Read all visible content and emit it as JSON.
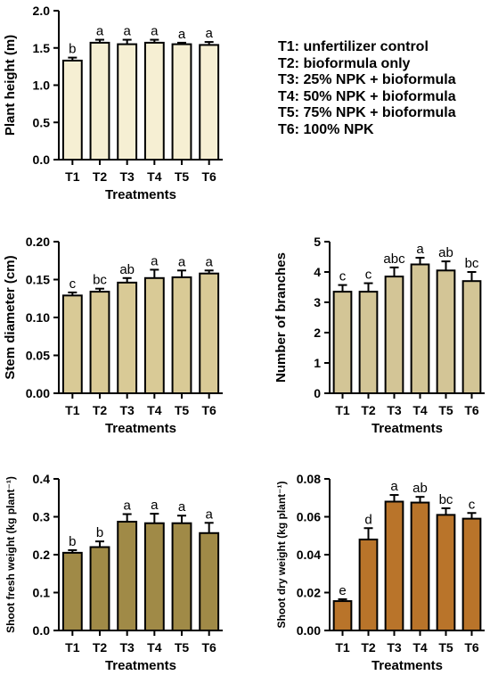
{
  "legend": {
    "items": [
      "T1: unfertilizer control",
      "T2: bioformula only",
      "T3: 25% NPK + bioformula",
      "T4: 50% NPK + bioformula",
      "T5: 75% NPK + bioformula",
      "T6: 100% NPK"
    ]
  },
  "chart_data": [
    {
      "type": "bar",
      "id": "plant-height",
      "categories": [
        "T1",
        "T2",
        "T3",
        "T4",
        "T5",
        "T6"
      ],
      "values": [
        1.33,
        1.57,
        1.55,
        1.57,
        1.55,
        1.54
      ],
      "errors": [
        0.04,
        0.04,
        0.06,
        0.04,
        0.02,
        0.04
      ],
      "letters": [
        "b",
        "a",
        "a",
        "a",
        "a",
        "a"
      ],
      "ylabel": "Plant height (m)",
      "xlabel": "Treatments",
      "ylim": [
        0,
        2.0
      ],
      "yticks": [
        "0.0",
        "0.5",
        "1.0",
        "1.5",
        "2.0"
      ],
      "bar_color": "#f6efd3"
    },
    {
      "type": "bar",
      "id": "stem-diameter",
      "categories": [
        "T1",
        "T2",
        "T3",
        "T4",
        "T5",
        "T6"
      ],
      "values": [
        0.129,
        0.134,
        0.146,
        0.152,
        0.153,
        0.158
      ],
      "errors": [
        0.004,
        0.004,
        0.006,
        0.011,
        0.009,
        0.004
      ],
      "letters": [
        "c",
        "bc",
        "ab",
        "a",
        "a",
        "a"
      ],
      "ylabel": "Stem diameter (cm)",
      "xlabel": "Treatments",
      "ylim": [
        0,
        0.2
      ],
      "yticks": [
        "0.00",
        "0.05",
        "0.10",
        "0.15",
        "0.20"
      ],
      "bar_color": "#d9ca96"
    },
    {
      "type": "bar",
      "id": "number-of-branches",
      "categories": [
        "T1",
        "T2",
        "T3",
        "T4",
        "T5",
        "T6"
      ],
      "values": [
        3.35,
        3.35,
        3.85,
        4.25,
        4.05,
        3.7
      ],
      "errors": [
        0.22,
        0.28,
        0.3,
        0.22,
        0.3,
        0.3
      ],
      "letters": [
        "c",
        "c",
        "abc",
        "a",
        "ab",
        "bc"
      ],
      "ylabel": "Number of branches",
      "xlabel": "Treatments",
      "ylim": [
        0,
        5
      ],
      "yticks": [
        "0",
        "1",
        "2",
        "3",
        "4",
        "5"
      ],
      "bar_color": "#d3c596"
    },
    {
      "type": "bar",
      "id": "shoot-fresh-weight",
      "categories": [
        "T1",
        "T2",
        "T3",
        "T4",
        "T5",
        "T6"
      ],
      "values": [
        0.205,
        0.22,
        0.287,
        0.283,
        0.283,
        0.257
      ],
      "errors": [
        0.007,
        0.015,
        0.02,
        0.025,
        0.02,
        0.027
      ],
      "letters": [
        "b",
        "b",
        "a",
        "a",
        "a",
        "a"
      ],
      "ylabel": "Shoot fresh weight (kg plant⁻¹)",
      "xlabel": "Treatments",
      "ylim": [
        0,
        0.4
      ],
      "yticks": [
        "0.0",
        "0.1",
        "0.2",
        "0.3",
        "0.4"
      ],
      "bar_color": "#a08a47"
    },
    {
      "type": "bar",
      "id": "shoot-dry-weight",
      "categories": [
        "T1",
        "T2",
        "T3",
        "T4",
        "T5",
        "T6"
      ],
      "values": [
        0.0155,
        0.048,
        0.068,
        0.0675,
        0.061,
        0.059
      ],
      "errors": [
        0.001,
        0.006,
        0.0035,
        0.003,
        0.0035,
        0.003
      ],
      "letters": [
        "e",
        "d",
        "a",
        "ab",
        "bc",
        "c"
      ],
      "ylabel": "Shoot dry weight (kg plant⁻¹)",
      "xlabel": "Treatments",
      "ylim": [
        0,
        0.08
      ],
      "yticks": [
        "0.00",
        "0.02",
        "0.04",
        "0.06",
        "0.08"
      ],
      "bar_color": "#b9742a"
    }
  ]
}
